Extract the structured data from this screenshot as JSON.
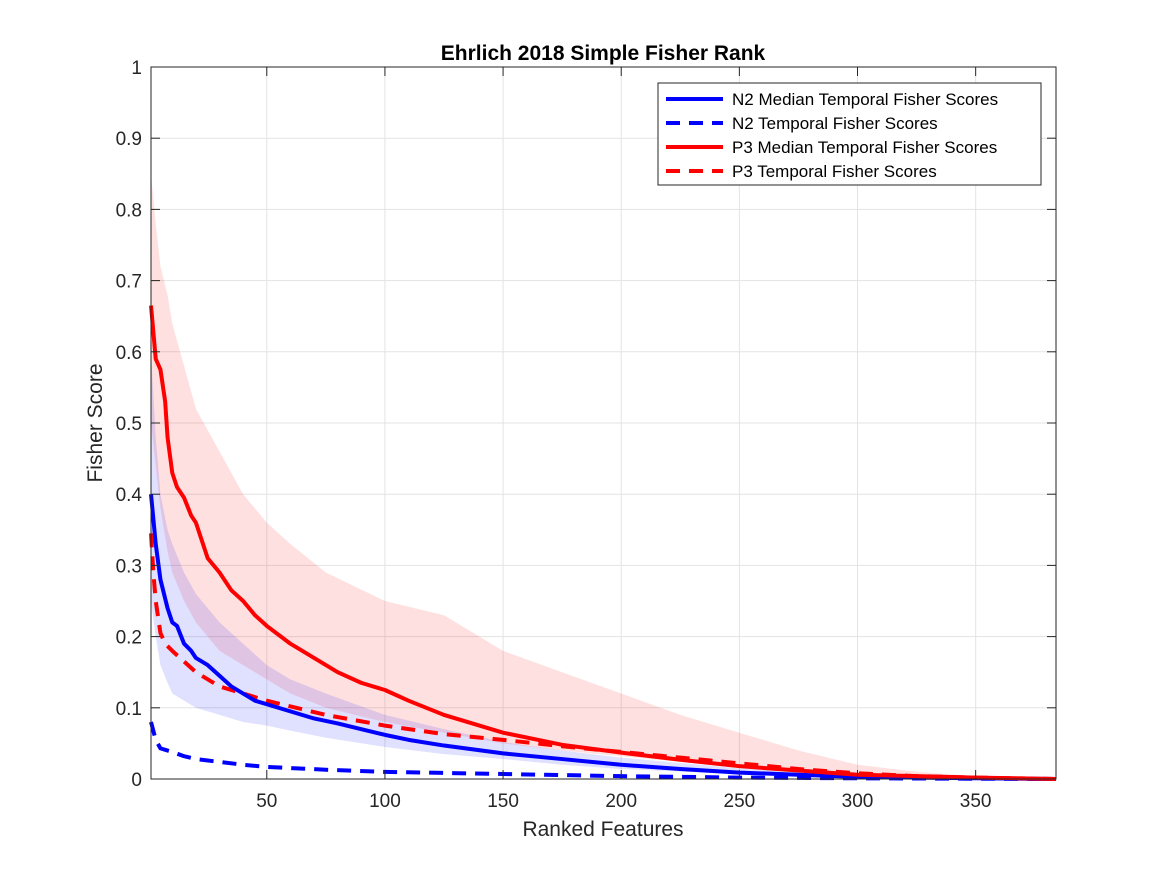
{
  "chart_data": {
    "type": "line",
    "title": "Ehrlich 2018 Simple Fisher Rank",
    "xlabel": "Ranked Features",
    "ylabel": "Fisher Score",
    "xlim": [
      1,
      384
    ],
    "ylim": [
      0,
      1
    ],
    "xticks": [
      50,
      100,
      150,
      200,
      250,
      300,
      350
    ],
    "yticks": [
      0,
      0.1,
      0.2,
      0.3,
      0.4,
      0.5,
      0.6,
      0.7,
      0.8,
      0.9,
      1
    ],
    "ytick_labels": [
      "0",
      "0.1",
      "0.2",
      "0.3",
      "0.4",
      "0.5",
      "0.6",
      "0.7",
      "0.8",
      "0.9",
      "1"
    ],
    "grid": true,
    "legend_position": "top-right",
    "series": [
      {
        "name": "N2 Median Temporal Fisher Scores",
        "color": "#0000ff",
        "style": "solid",
        "x": [
          1,
          3,
          5,
          8,
          10,
          12,
          15,
          18,
          20,
          25,
          30,
          35,
          40,
          45,
          50,
          60,
          70,
          80,
          90,
          100,
          110,
          125,
          150,
          175,
          200,
          225,
          250,
          275,
          300,
          325,
          350,
          384
        ],
        "y": [
          0.4,
          0.33,
          0.28,
          0.24,
          0.22,
          0.215,
          0.19,
          0.18,
          0.17,
          0.16,
          0.145,
          0.13,
          0.12,
          0.11,
          0.105,
          0.095,
          0.085,
          0.078,
          0.07,
          0.062,
          0.055,
          0.047,
          0.036,
          0.028,
          0.02,
          0.014,
          0.009,
          0.006,
          0.003,
          0.002,
          0.001,
          0.0
        ]
      },
      {
        "name": "N2 Temporal Fisher Scores",
        "color": "#0000ff",
        "style": "dashed",
        "x": [
          1,
          3,
          5,
          10,
          15,
          20,
          30,
          40,
          50,
          75,
          100,
          150,
          200,
          250,
          300,
          384
        ],
        "y": [
          0.08,
          0.055,
          0.043,
          0.038,
          0.032,
          0.028,
          0.024,
          0.02,
          0.017,
          0.013,
          0.01,
          0.007,
          0.004,
          0.002,
          0.001,
          0.0
        ]
      },
      {
        "name": "P3 Median Temporal Fisher Scores",
        "color": "#ff0000",
        "style": "solid",
        "x": [
          1,
          3,
          5,
          7,
          8,
          10,
          12,
          15,
          18,
          20,
          25,
          30,
          35,
          40,
          45,
          50,
          60,
          70,
          80,
          90,
          100,
          110,
          125,
          150,
          175,
          200,
          225,
          250,
          275,
          300,
          325,
          350,
          384
        ],
        "y": [
          0.665,
          0.59,
          0.575,
          0.53,
          0.48,
          0.43,
          0.41,
          0.395,
          0.37,
          0.36,
          0.31,
          0.29,
          0.265,
          0.25,
          0.23,
          0.215,
          0.19,
          0.17,
          0.15,
          0.135,
          0.125,
          0.11,
          0.09,
          0.065,
          0.048,
          0.037,
          0.027,
          0.018,
          0.012,
          0.006,
          0.004,
          0.002,
          0.0
        ]
      },
      {
        "name": "P3 Temporal Fisher Scores",
        "color": "#ff0000",
        "style": "dashed",
        "x": [
          1,
          2,
          3,
          5,
          7,
          10,
          15,
          20,
          25,
          30,
          40,
          50,
          75,
          100,
          125,
          150,
          175,
          200,
          225,
          250,
          275,
          300,
          325,
          350,
          384
        ],
        "y": [
          0.345,
          0.29,
          0.25,
          0.205,
          0.19,
          0.18,
          0.165,
          0.15,
          0.14,
          0.13,
          0.12,
          0.11,
          0.09,
          0.075,
          0.063,
          0.055,
          0.046,
          0.038,
          0.03,
          0.022,
          0.014,
          0.008,
          0.004,
          0.002,
          0.0
        ]
      }
    ],
    "bands": [
      {
        "color": "#ff0000",
        "x": [
          1,
          3,
          5,
          8,
          10,
          15,
          20,
          30,
          40,
          50,
          60,
          75,
          100,
          125,
          150,
          175,
          200,
          225,
          250,
          275,
          300,
          325,
          350,
          384
        ],
        "upper": [
          0.85,
          0.78,
          0.72,
          0.68,
          0.64,
          0.58,
          0.52,
          0.46,
          0.4,
          0.36,
          0.33,
          0.29,
          0.25,
          0.23,
          0.18,
          0.15,
          0.12,
          0.09,
          0.065,
          0.04,
          0.02,
          0.01,
          0.004,
          0.0
        ],
        "lower": [
          0.5,
          0.44,
          0.38,
          0.32,
          0.29,
          0.25,
          0.22,
          0.18,
          0.16,
          0.14,
          0.12,
          0.1,
          0.08,
          0.065,
          0.05,
          0.04,
          0.032,
          0.024,
          0.016,
          0.01,
          0.005,
          0.003,
          0.001,
          0.0
        ]
      },
      {
        "color": "#0000ff",
        "x": [
          1,
          3,
          5,
          8,
          10,
          15,
          20,
          30,
          40,
          50,
          60,
          75,
          100,
          125,
          150,
          175,
          200,
          250,
          300,
          350,
          384
        ],
        "upper": [
          0.6,
          0.48,
          0.4,
          0.35,
          0.33,
          0.29,
          0.26,
          0.22,
          0.19,
          0.16,
          0.14,
          0.12,
          0.09,
          0.07,
          0.052,
          0.04,
          0.03,
          0.015,
          0.006,
          0.002,
          0.0
        ],
        "lower": [
          0.25,
          0.2,
          0.16,
          0.135,
          0.12,
          0.11,
          0.1,
          0.09,
          0.08,
          0.075,
          0.068,
          0.058,
          0.045,
          0.035,
          0.028,
          0.02,
          0.014,
          0.007,
          0.003,
          0.001,
          0.0
        ]
      }
    ]
  }
}
